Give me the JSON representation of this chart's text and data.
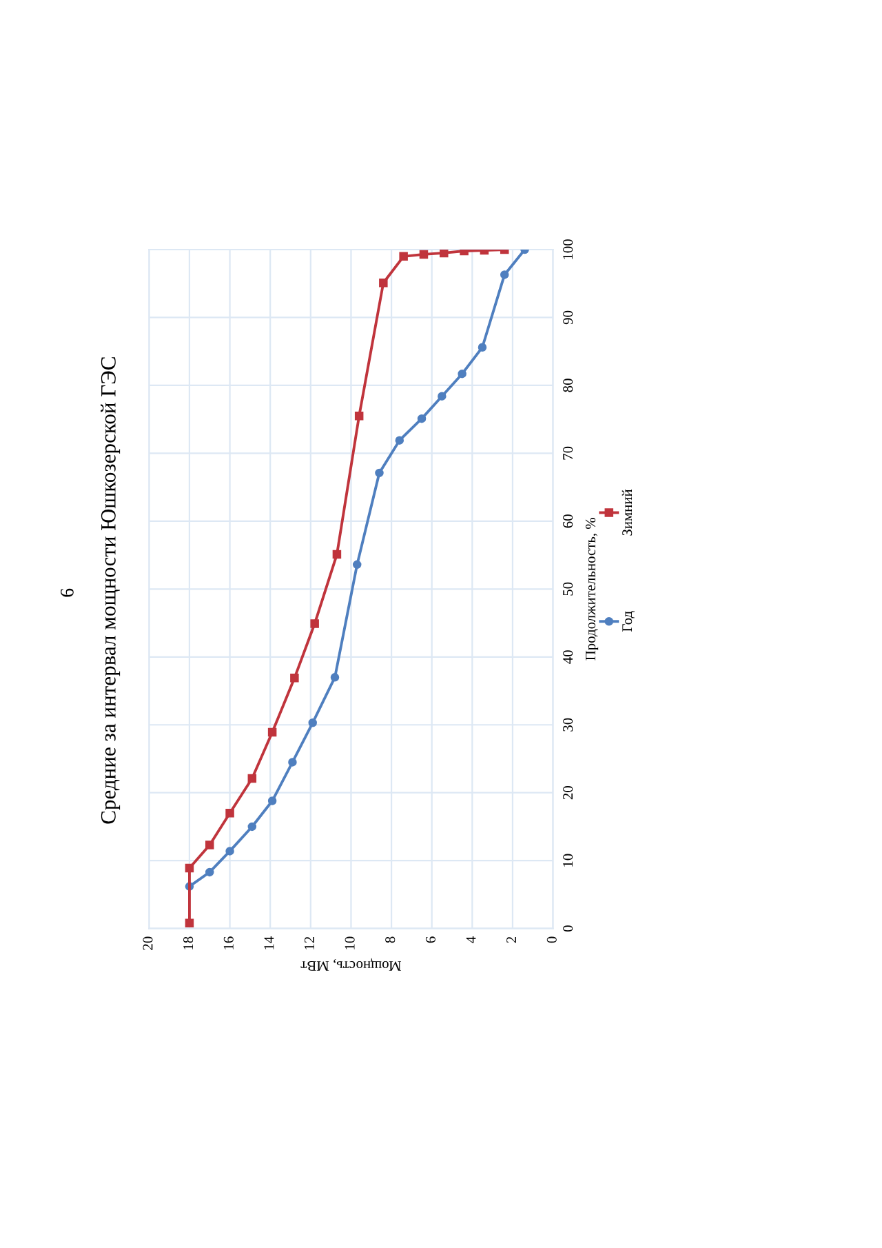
{
  "chart_data": {
    "type": "line",
    "title": "Средние за интервал мощности Юшкозерской ГЭС",
    "xlabel": "Мощность, МВт",
    "ylabel": "Продолжительность, %",
    "annotations": [
      "6"
    ],
    "xlim": [
      20,
      0
    ],
    "xticks": [
      20,
      18,
      16,
      14,
      12,
      10,
      8,
      6,
      4,
      2,
      0
    ],
    "ylim": [
      0,
      100
    ],
    "yticks": [
      0,
      10,
      20,
      30,
      40,
      50,
      60,
      70,
      80,
      90,
      100
    ],
    "grid": true,
    "legend": "right",
    "series": [
      {
        "name": "Год",
        "color": "#4f7fbf",
        "marker": "circle",
        "x": [
          18.0,
          17.0,
          16.0,
          14.9,
          13.9,
          12.9,
          11.9,
          10.8,
          9.7,
          8.6,
          7.6,
          6.5,
          5.5,
          4.5,
          3.5,
          2.4,
          1.4
        ],
        "values": [
          6.2,
          8.3,
          11.4,
          15.0,
          18.8,
          24.5,
          30.3,
          37.0,
          53.6,
          67.1,
          71.9,
          75.1,
          78.4,
          81.7,
          85.6,
          96.3,
          100
        ]
      },
      {
        "name": "Зимний",
        "color": "#c0343c",
        "marker": "square",
        "x": [
          18.0,
          18.0,
          17.0,
          16.0,
          14.9,
          13.9,
          12.8,
          11.8,
          10.7,
          9.6,
          8.4,
          7.4,
          6.4,
          5.4,
          4.4,
          3.4,
          2.4
        ],
        "values": [
          0.8,
          8.9,
          12.3,
          17.0,
          22.1,
          28.9,
          36.9,
          44.9,
          55.1,
          75.5,
          95.1,
          99.0,
          99.3,
          99.5,
          99.8,
          99.9,
          100
        ]
      }
    ]
  }
}
